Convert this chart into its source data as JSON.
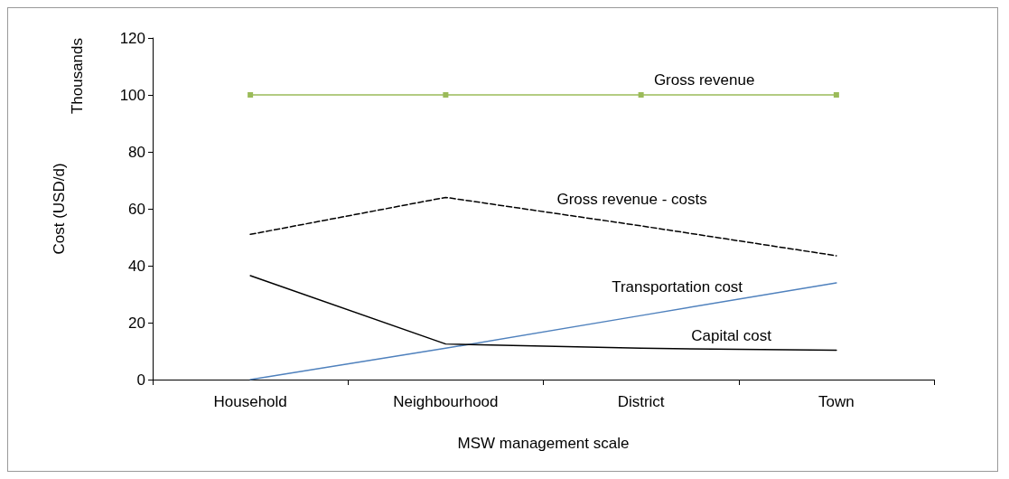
{
  "chart_data": {
    "type": "line",
    "xlabel": "MSW management scale",
    "ylabel": "Cost (USD/d)",
    "annotations": [
      "Thousands"
    ],
    "categories": [
      "Household",
      "Neighbourhood",
      "District",
      "Town"
    ],
    "ylim": [
      0,
      120
    ],
    "yticks": [
      0,
      20,
      40,
      60,
      80,
      100,
      120
    ],
    "grid": false,
    "legend": false,
    "series": [
      {
        "name": "Gross revenue",
        "color": "#9bbb59",
        "values": [
          100,
          100,
          100,
          100
        ],
        "marker": "square",
        "line_style": "solid"
      },
      {
        "name": "Gross revenue - costs",
        "color": "#000000",
        "values": [
          51,
          64,
          54,
          43.5
        ],
        "marker": "none",
        "line_style": "dashed"
      },
      {
        "name": "Transportation cost",
        "color": "#4f81bd",
        "values": [
          0,
          11,
          22.5,
          34
        ],
        "marker": "none",
        "line_style": "solid"
      },
      {
        "name": "Capital cost",
        "color": "#000000",
        "values": [
          36.5,
          12.5,
          11,
          10.3
        ],
        "marker": "none",
        "line_style": "solid"
      }
    ]
  }
}
